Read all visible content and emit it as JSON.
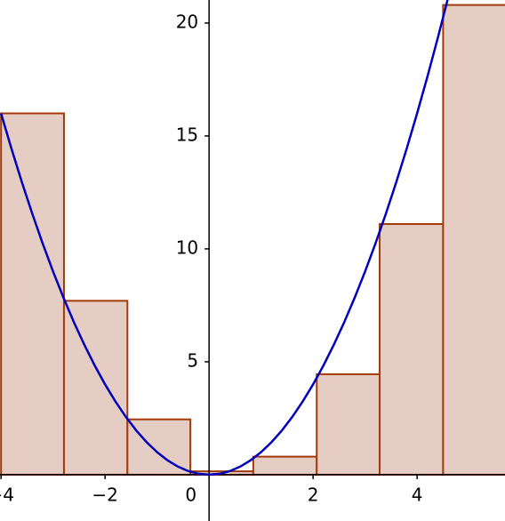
{
  "chart_data": {
    "type": "histogram",
    "bins": [
      -4,
      -2.79,
      -1.57,
      -0.36,
      0.85,
      2.07,
      3.28,
      4.5,
      5.71
    ],
    "values": [
      16,
      7.7,
      2.45,
      0.15,
      0.8,
      4.45,
      11.1,
      20.8
    ],
    "color": "#e6cdc3",
    "edgecolor": "#a33a0a",
    "curve": {
      "type": "line",
      "color": "#0000bb",
      "x": [
        -4,
        -3.8,
        -3.6,
        -3.4,
        -3.2,
        -3,
        -2.8,
        -2.6,
        -2.4,
        -2.2,
        -2,
        -1.8,
        -1.6,
        -1.4,
        -1.2,
        -1,
        -0.8,
        -0.6,
        -0.4,
        -0.2,
        0,
        0.2,
        0.4,
        0.6,
        0.8,
        1,
        1.2,
        1.4,
        1.6,
        1.8,
        2,
        2.2,
        2.4,
        2.6,
        2.8,
        3,
        3.2,
        3.4,
        3.6,
        3.8,
        4,
        4.2,
        4.4,
        4.6
      ],
      "values": [
        16,
        14.44,
        12.96,
        11.56,
        10.24,
        9,
        7.84,
        6.76,
        5.76,
        4.84,
        4,
        3.24,
        2.56,
        1.96,
        1.44,
        1,
        0.64,
        0.36,
        0.16,
        0.04,
        0,
        0.04,
        0.16,
        0.36,
        0.64,
        1,
        1.44,
        1.96,
        2.56,
        3.24,
        4,
        4.84,
        5.76,
        6.76,
        7.84,
        9,
        10.24,
        11.56,
        12.96,
        14.44,
        16,
        17.64,
        19.36,
        21.16
      ]
    },
    "xlim": [
      -4.02,
      5.69
    ],
    "ylim": [
      -2.05,
      21.02
    ],
    "xticks": [
      {
        "value": -4,
        "label": "−4"
      },
      {
        "value": -2,
        "label": "−2"
      },
      0,
      2,
      4
    ],
    "yticks": [
      5,
      10,
      15,
      20
    ]
  }
}
